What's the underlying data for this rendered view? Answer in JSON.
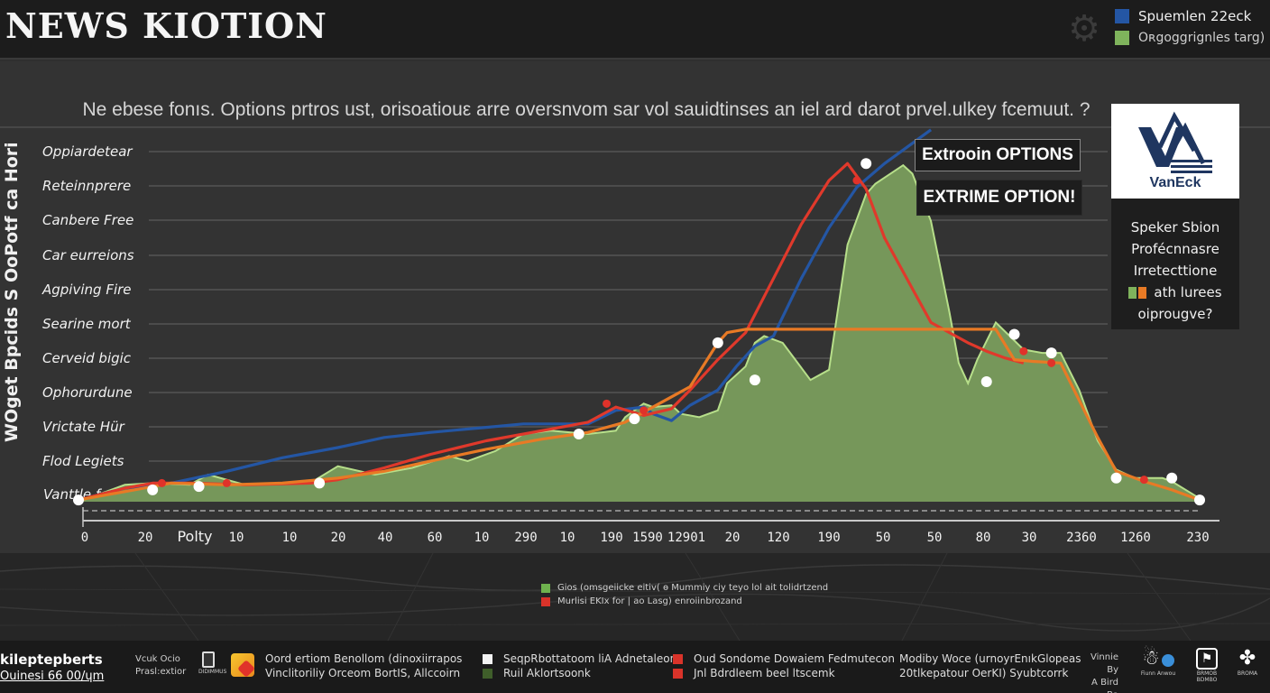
{
  "header": {
    "title": "NEWS KIOTION",
    "gear_icon": "gear-icon",
    "legend": [
      {
        "label": "Spuemlen 22eck",
        "color": "#2456a4"
      },
      {
        "label": "Oʀgoggrignles targ)",
        "color": "#7fb35c"
      }
    ]
  },
  "subtitle": "Ne ebese fonıs. Options prtros ust, orisoatiouε arre oversnvom sar vol sauidtinses an iel ard darot prvel.ulkey fcemuut. ?",
  "annotations": {
    "box1": "Extrooin OPTIONS",
    "box2": "EXTRIME OPTION!"
  },
  "brand_card": {
    "logo_name": "VanEck",
    "lines": [
      "Speker Sbion",
      "Profécnnasre",
      "Irretecttione",
      "ath lurees",
      "oiprougve?"
    ],
    "swatches": [
      "#7fb35c",
      "#e87a25"
    ]
  },
  "chart_data": {
    "type": "area",
    "title": "NEWS KIOTION",
    "subtitle": "Ne ebese fonıs. Options prtros ust, orisoatiouε arre oversnvom sar vol sauidtinses an iel ard darot prvel.ulkey fcemuut. ?",
    "ylabel": "WOget Bpcids S OoPotf ca Hori",
    "xlabel": "Polty",
    "y_tick_labels": [
      "Vanttle fe",
      "Flod Legiets",
      "Vrictate Hür",
      "Ophorurdune",
      "Cerveid bigic",
      "Searine mort",
      "Agpiving Fire",
      "Car eurreions",
      "Canbere Free",
      "Reteinnprere",
      "Oppiardetear"
    ],
    "x_tick_labels": [
      "0",
      "20",
      "Polty",
      "10",
      "10",
      "20",
      "40",
      "60",
      "10",
      "290",
      "10",
      "190",
      "1590",
      "12901",
      "20",
      "120",
      "190",
      "50",
      "50",
      "80",
      "30",
      "2360",
      "1260",
      "230"
    ],
    "x_range": [
      0,
      100
    ],
    "y_range": [
      0,
      11
    ],
    "grid": true,
    "legend": "top-right",
    "series": [
      {
        "name": "Oʀgoggrignles targ) (area)",
        "type": "area",
        "color": "#7fb35c",
        "points": [
          [
            0,
            0
          ],
          [
            3,
            0.3
          ],
          [
            5,
            0.5
          ],
          [
            8,
            0.55
          ],
          [
            12,
            0.5
          ],
          [
            14,
            0.8
          ],
          [
            18,
            0.5
          ],
          [
            25,
            0.55
          ],
          [
            28,
            1.05
          ],
          [
            32,
            0.8
          ],
          [
            36,
            1.0
          ],
          [
            40,
            1.35
          ],
          [
            42,
            1.2
          ],
          [
            45,
            1.5
          ],
          [
            48,
            2.0
          ],
          [
            51,
            2.1
          ],
          [
            55,
            2.0
          ],
          [
            58,
            2.1
          ],
          [
            59,
            2.5
          ],
          [
            61,
            2.9
          ],
          [
            62,
            2.8
          ],
          [
            64,
            2.85
          ],
          [
            65,
            2.6
          ],
          [
            67,
            2.5
          ],
          [
            69,
            2.7
          ],
          [
            70,
            3.5
          ],
          [
            72,
            4.0
          ],
          [
            73,
            4.7
          ],
          [
            74,
            4.9
          ],
          [
            76,
            4.7
          ],
          [
            79,
            3.6
          ],
          [
            81,
            3.9
          ],
          [
            83,
            7.6
          ],
          [
            85,
            9.1
          ],
          [
            86,
            9.4
          ],
          [
            89,
            9.95
          ],
          [
            90,
            9.7
          ],
          [
            92,
            8.3
          ],
          [
            94,
            5.6
          ],
          [
            95,
            4.1
          ],
          [
            96,
            3.5
          ],
          [
            97,
            4.2
          ],
          [
            99,
            5.3
          ],
          [
            102,
            4.5
          ],
          [
            104,
            4.4
          ],
          [
            106,
            4.4
          ],
          [
            108,
            3.3
          ],
          [
            110,
            1.8
          ],
          [
            112,
            0.95
          ],
          [
            114,
            0.7
          ],
          [
            117,
            0.7
          ],
          [
            118,
            0.6
          ],
          [
            121,
            0.1
          ]
        ]
      },
      {
        "name": "Spuemlen 22eck",
        "type": "line",
        "color": "#2456a4",
        "points": [
          [
            0,
            0.05
          ],
          [
            5,
            0.4
          ],
          [
            10,
            0.55
          ],
          [
            16,
            0.9
          ],
          [
            22,
            1.3
          ],
          [
            28,
            1.6
          ],
          [
            33,
            1.9
          ],
          [
            38,
            2.05
          ],
          [
            44,
            2.2
          ],
          [
            48,
            2.3
          ],
          [
            55,
            2.3
          ],
          [
            58,
            2.7
          ],
          [
            61,
            2.8
          ],
          [
            62,
            2.6
          ],
          [
            64,
            2.4
          ],
          [
            66,
            2.85
          ],
          [
            69,
            3.3
          ],
          [
            71,
            4.0
          ],
          [
            73,
            4.6
          ],
          [
            75,
            4.9
          ],
          [
            78,
            6.6
          ],
          [
            81,
            8.1
          ],
          [
            84,
            9.3
          ],
          [
            87,
            10.0
          ],
          [
            90,
            10.6
          ],
          [
            92,
            11.0
          ]
        ]
      },
      {
        "name": "Red trend",
        "type": "line",
        "color": "#e0392b",
        "points": [
          [
            0,
            0.05
          ],
          [
            5,
            0.4
          ],
          [
            8,
            0.55
          ],
          [
            12,
            0.55
          ],
          [
            18,
            0.5
          ],
          [
            25,
            0.55
          ],
          [
            28,
            0.65
          ],
          [
            33,
            1.0
          ],
          [
            38,
            1.4
          ],
          [
            44,
            1.8
          ],
          [
            50,
            2.1
          ],
          [
            55,
            2.35
          ],
          [
            58,
            2.8
          ],
          [
            61,
            2.55
          ],
          [
            64,
            2.75
          ],
          [
            66,
            3.3
          ],
          [
            69,
            4.2
          ],
          [
            72,
            5.0
          ],
          [
            75,
            6.6
          ],
          [
            78,
            8.2
          ],
          [
            81,
            9.5
          ],
          [
            83,
            10.0
          ],
          [
            85,
            9.25
          ],
          [
            87,
            7.8
          ],
          [
            90,
            6.3
          ],
          [
            92,
            5.3
          ],
          [
            94,
            5.0
          ],
          [
            96,
            4.7
          ],
          [
            98,
            4.45
          ],
          [
            100,
            4.25
          ],
          [
            102,
            4.1
          ]
        ]
      },
      {
        "name": "Orange trend",
        "type": "line",
        "color": "#e87a25",
        "points": [
          [
            0,
            0.05
          ],
          [
            5,
            0.3
          ],
          [
            10,
            0.55
          ],
          [
            16,
            0.5
          ],
          [
            22,
            0.55
          ],
          [
            28,
            0.7
          ],
          [
            33,
            0.9
          ],
          [
            38,
            1.2
          ],
          [
            44,
            1.55
          ],
          [
            50,
            1.85
          ],
          [
            55,
            2.05
          ],
          [
            59,
            2.35
          ],
          [
            61,
            2.65
          ],
          [
            64,
            3.1
          ],
          [
            66,
            3.4
          ],
          [
            69,
            4.7
          ],
          [
            70,
            5.0
          ],
          [
            72,
            5.1
          ],
          [
            99,
            5.1
          ],
          [
            101,
            4.2
          ],
          [
            103,
            4.15
          ],
          [
            106,
            4.1
          ],
          [
            110,
            1.9
          ],
          [
            112,
            0.9
          ],
          [
            115,
            0.6
          ],
          [
            118,
            0.35
          ],
          [
            121,
            0.05
          ]
        ]
      }
    ],
    "markers": {
      "white": [
        [
          0,
          0.05
        ],
        [
          8,
          0.35
        ],
        [
          13,
          0.45
        ],
        [
          26,
          0.55
        ],
        [
          54,
          2.0
        ],
        [
          60,
          2.45
        ],
        [
          69,
          4.7
        ],
        [
          73,
          3.6
        ],
        [
          85,
          10.0
        ],
        [
          98,
          3.55
        ],
        [
          101,
          4.95
        ],
        [
          105,
          4.4
        ],
        [
          112,
          0.7
        ],
        [
          118,
          0.7
        ],
        [
          121,
          0.05
        ]
      ],
      "red": [
        [
          9,
          0.55
        ],
        [
          16,
          0.55
        ],
        [
          57,
          2.9
        ],
        [
          61,
          2.7
        ],
        [
          84,
          9.5
        ],
        [
          102,
          4.45
        ],
        [
          105,
          4.1
        ],
        [
          115,
          0.65
        ]
      ]
    }
  },
  "mid_legend": [
    {
      "label": "Gios (omsgeiicke eitiv( ɵ Mummiy ciy teyo lol ait tolidrtzend",
      "color": "#6fb24e"
    },
    {
      "label": "Murlisi EKIx for | ao Lasg) enroiinbrozand",
      "color": "#d9332a"
    }
  ],
  "footer": {
    "brand_line1": "kileptepberts",
    "brand_line2": "Ouinesi 66 00/ɥm",
    "small1": [
      "Vcuk Ocio",
      "Prasl:extior"
    ],
    "doc_icon_caption": "DIDIMMUS",
    "app_icon": "colorful-app-icon",
    "text1": [
      "Oord ertiom Benollom (dinoxiirrapos",
      "Vinclitoriliy Orceom BortIS, Allccoirn"
    ],
    "legend_left": [
      {
        "label": "SeqpRbottatoom liA Adnetaleon",
        "color": "#f2f2f2"
      },
      {
        "label": "Ruil Aklortsoonk",
        "color": "#3f5e2a"
      }
    ],
    "legend_right": [
      {
        "label": "Oud Sondome Dowaiem Fedmutecon",
        "color": "#d9332a"
      },
      {
        "label": "Jnl Bdrdleem beel ltscemk",
        "color": "#d9332a"
      }
    ],
    "text2": [
      "Modiby Woce (urnoyrEnıkGlopeas",
      "20tlkepatour OerKI) Syubtcorrk"
    ],
    "small2": [
      "Vinnie By",
      "A Bird Ba"
    ],
    "icon_captions": [
      "Fiunn Anwou",
      "BRMOB BDMBO",
      "BROMA"
    ]
  }
}
